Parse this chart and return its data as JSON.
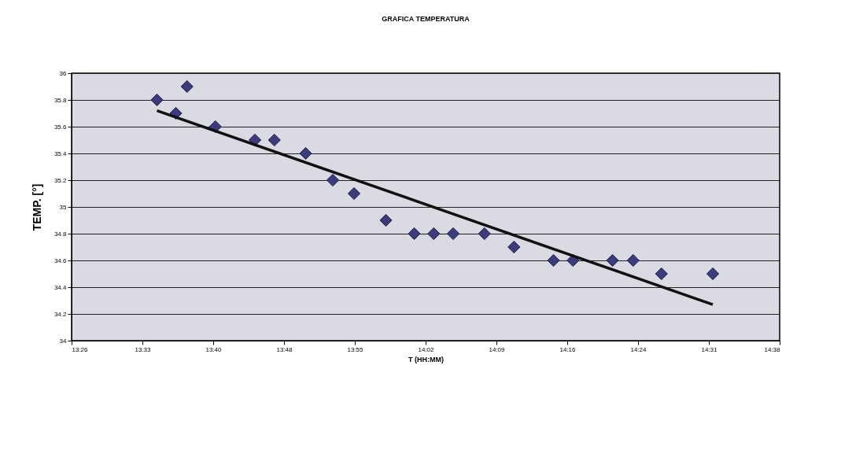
{
  "chart_data": {
    "type": "scatter",
    "title": "GRAFICA TEMPERATURA",
    "xlabel": "T (HH:MM)",
    "ylabel": "TEMP. [°]",
    "x": [
      13.578,
      13.61,
      13.629,
      13.677,
      13.744,
      13.777,
      13.83,
      13.876,
      13.912,
      13.966,
      14.014,
      14.047,
      14.08,
      14.133,
      14.183,
      14.25,
      14.283,
      14.35,
      14.385,
      14.433,
      14.52
    ],
    "series": [
      {
        "color": "#3b3b7d",
        "marker": "diamond",
        "values": [
          35.8,
          35.7,
          35.9,
          35.6,
          35.5,
          35.5,
          35.4,
          35.2,
          35.1,
          34.9,
          34.8,
          34.8,
          34.8,
          34.8,
          34.7,
          34.6,
          34.6,
          34.6,
          34.6,
          34.5,
          34.5
        ]
      },
      {
        "type": "line",
        "color": "#111111",
        "x": [
          13.578,
          14.52
        ],
        "values": [
          35.72,
          34.27
        ]
      }
    ],
    "xlim": [
      13.4333,
      14.6333
    ],
    "xticks": [
      {
        "value": 13.4333,
        "label": "13:26"
      },
      {
        "value": 13.5533,
        "label": "13:33"
      },
      {
        "value": 13.6733,
        "label": "13:40"
      },
      {
        "value": 13.7933,
        "label": "13:48"
      },
      {
        "value": 13.9133,
        "label": "13:55"
      },
      {
        "value": 14.0333,
        "label": "14:02"
      },
      {
        "value": 14.1533,
        "label": "14:09"
      },
      {
        "value": 14.2733,
        "label": "14:16"
      },
      {
        "value": 14.3933,
        "label": "14:24"
      },
      {
        "value": 14.5133,
        "label": "14:31"
      },
      {
        "value": 14.6333,
        "label": "14:38"
      }
    ],
    "ylim": [
      34,
      36
    ],
    "yticks": [
      34,
      34.2,
      34.4,
      34.6,
      34.8,
      35,
      35.2,
      35.4,
      35.6,
      35.8,
      36
    ],
    "grid": "y"
  }
}
